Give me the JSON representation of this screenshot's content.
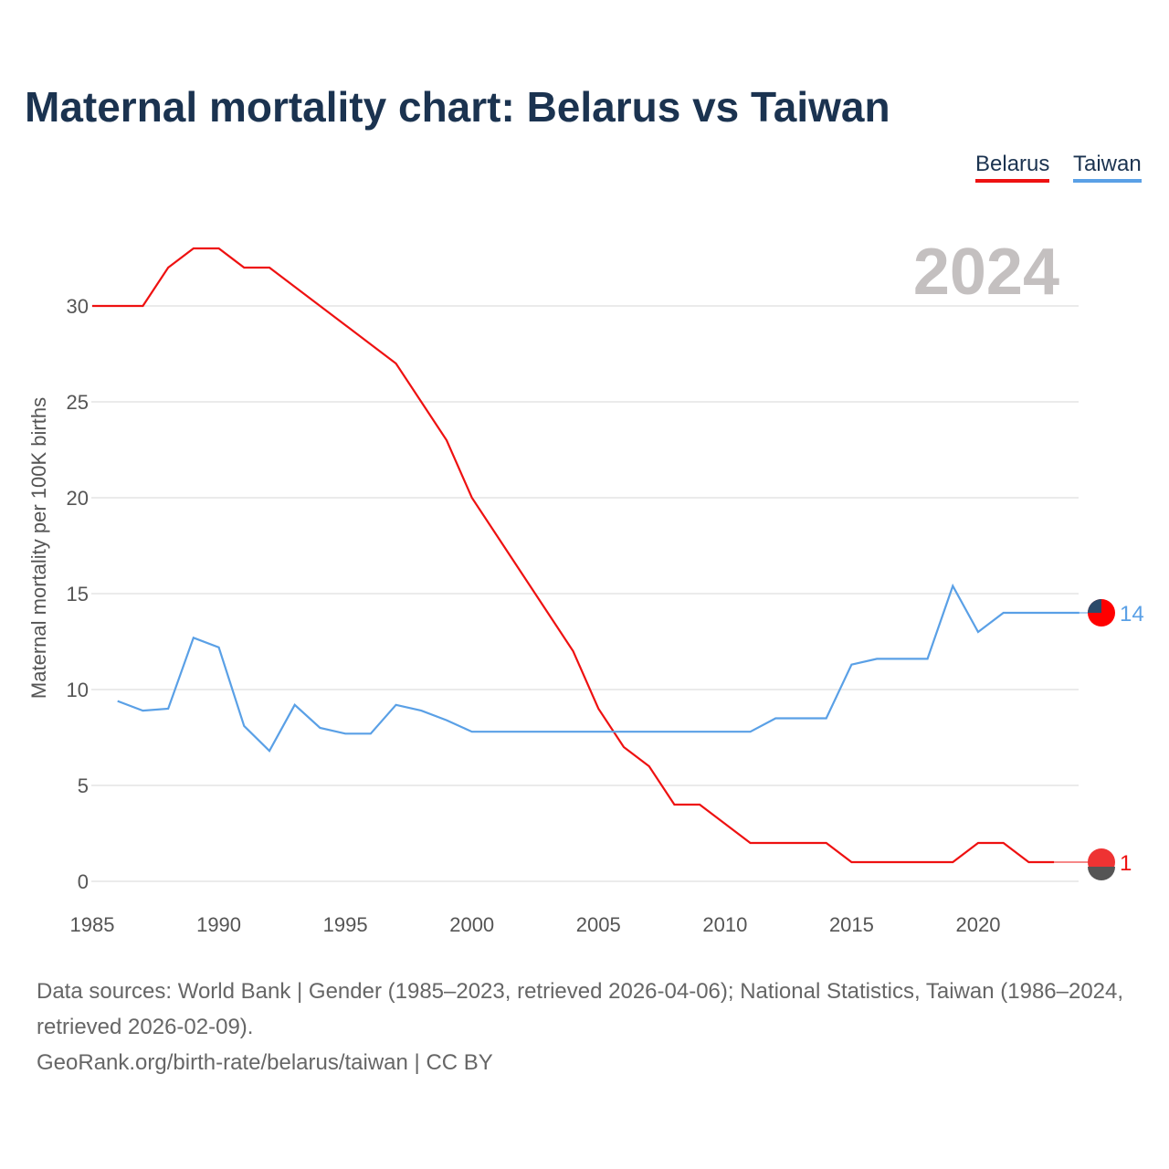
{
  "title": "Maternal mortality chart: Belarus vs Taiwan",
  "year_label": "2024",
  "sources_line1": "Data sources: World Bank | Gender (1985–2023, retrieved 2026-04-06); National Statistics, Taiwan (1986–2024, retrieved 2026-02-09).",
  "sources_line2": "GeoRank.org/birth-rate/belarus/taiwan | CC BY",
  "chart_data": {
    "type": "line",
    "title": "Maternal mortality chart: Belarus vs Taiwan",
    "xlabel": "",
    "ylabel": "Maternal mortality per 100K births",
    "xlim": [
      1985,
      2024
    ],
    "ylim": [
      0,
      33
    ],
    "xticks": [
      1985,
      1990,
      1995,
      2000,
      2005,
      2010,
      2015,
      2020
    ],
    "yticks": [
      0,
      5,
      10,
      15,
      20,
      25,
      30
    ],
    "grid": true,
    "legend": "top-right",
    "series": [
      {
        "name": "Belarus",
        "color": "#ee1111",
        "end_label": "1",
        "x": [
          1985,
          1986,
          1987,
          1988,
          1989,
          1990,
          1991,
          1992,
          1993,
          1994,
          1995,
          1996,
          1997,
          1998,
          1999,
          2000,
          2001,
          2002,
          2003,
          2004,
          2005,
          2006,
          2007,
          2008,
          2009,
          2010,
          2011,
          2012,
          2013,
          2014,
          2015,
          2016,
          2017,
          2018,
          2019,
          2020,
          2021,
          2022,
          2023
        ],
        "values": [
          30,
          30,
          30,
          32,
          33,
          33,
          32,
          32,
          31,
          30,
          29,
          28,
          27,
          25,
          23,
          20,
          18,
          16,
          14,
          12,
          9,
          7,
          6,
          4,
          4,
          3,
          2,
          2,
          2,
          2,
          1,
          1,
          1,
          1,
          1,
          2,
          2,
          1,
          1
        ]
      },
      {
        "name": "Taiwan",
        "color": "#5aa0e6",
        "end_label": "14",
        "x": [
          1986,
          1987,
          1988,
          1989,
          1990,
          1991,
          1992,
          1993,
          1994,
          1995,
          1996,
          1997,
          1998,
          1999,
          2000,
          2001,
          2002,
          2003,
          2004,
          2005,
          2006,
          2007,
          2008,
          2009,
          2010,
          2011,
          2012,
          2013,
          2014,
          2015,
          2016,
          2017,
          2018,
          2019,
          2020,
          2021,
          2022,
          2023,
          2024
        ],
        "values": [
          9.4,
          8.9,
          9.0,
          12.7,
          12.2,
          8.1,
          6.8,
          9.2,
          8.0,
          7.7,
          7.7,
          9.2,
          8.9,
          8.4,
          7.8,
          7.8,
          7.8,
          7.8,
          7.8,
          7.8,
          7.8,
          7.8,
          7.8,
          7.8,
          7.8,
          7.8,
          8.5,
          8.5,
          8.5,
          11.3,
          11.6,
          11.6,
          11.6,
          15.4,
          13.0,
          14.0,
          14.0,
          14.0,
          14.0
        ]
      }
    ]
  }
}
